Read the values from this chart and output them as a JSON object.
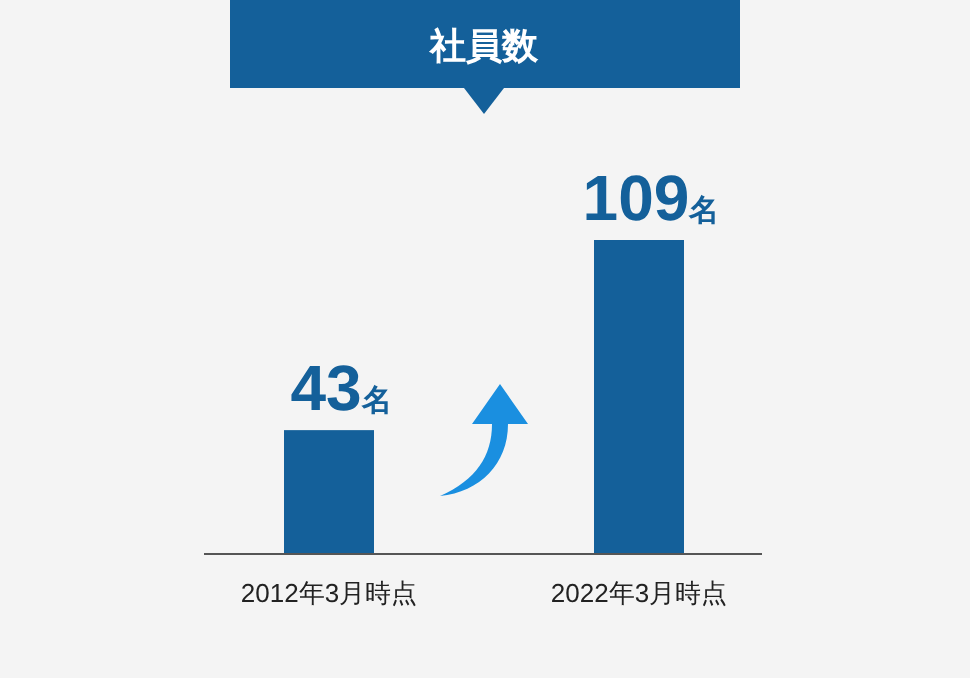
{
  "chart_data": {
    "type": "bar",
    "title": "社員数",
    "categories": [
      "2012年3月時点",
      "2022年3月時点"
    ],
    "values": [
      43,
      109
    ],
    "color": "#14609a",
    "value_labels": [
      "43名",
      "109名"
    ]
  }
}
